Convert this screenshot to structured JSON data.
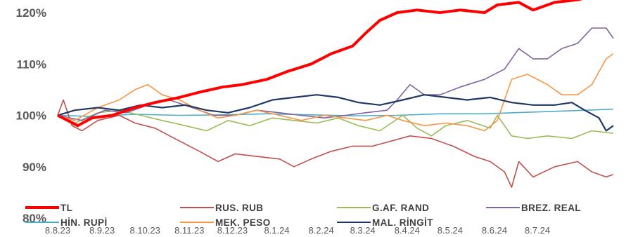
{
  "chart_data": {
    "type": "line",
    "title": "",
    "xlabel": "",
    "ylabel": "",
    "ylim": [
      80,
      125
    ],
    "yticks": [
      {
        "value": 80,
        "label": "80%"
      },
      {
        "value": 90,
        "label": "90%"
      },
      {
        "value": 100,
        "label": "100%"
      },
      {
        "value": 110,
        "label": "110%"
      },
      {
        "value": 120,
        "label": "120%"
      }
    ],
    "x_range": [
      "2023-08-08",
      "2024-08-30"
    ],
    "xticks": [
      {
        "date": "2023-08-08",
        "label": "8.8.23"
      },
      {
        "date": "2023-09-08",
        "label": "8.9.23"
      },
      {
        "date": "2023-10-08",
        "label": "8.10.23"
      },
      {
        "date": "2023-11-08",
        "label": "8.11.23"
      },
      {
        "date": "2023-12-08",
        "label": "8.12.23"
      },
      {
        "date": "2024-01-08",
        "label": "8.1.24"
      },
      {
        "date": "2024-02-08",
        "label": "8.2.24"
      },
      {
        "date": "2024-03-08",
        "label": "8.3.24"
      },
      {
        "date": "2024-04-08",
        "label": "8.4.24"
      },
      {
        "date": "2024-05-08",
        "label": "8.5.24"
      },
      {
        "date": "2024-06-08",
        "label": "8.6.24"
      },
      {
        "date": "2024-07-08",
        "label": "8.7.24"
      }
    ],
    "grid": false,
    "legend_position": "bottom",
    "series": [
      {
        "name": "TL",
        "color": "#ff0000",
        "width": 4,
        "points": [
          [
            "2023-08-08",
            100
          ],
          [
            "2023-08-22",
            98
          ],
          [
            "2023-09-01",
            99.5
          ],
          [
            "2023-09-15",
            100
          ],
          [
            "2023-10-01",
            101.5
          ],
          [
            "2023-10-15",
            102.5
          ],
          [
            "2023-11-01",
            103.5
          ],
          [
            "2023-11-15",
            104.5
          ],
          [
            "2023-12-01",
            105.5
          ],
          [
            "2023-12-15",
            106
          ],
          [
            "2024-01-01",
            107
          ],
          [
            "2024-01-15",
            108.5
          ],
          [
            "2024-02-01",
            110
          ],
          [
            "2024-02-15",
            112
          ],
          [
            "2024-03-01",
            113.5
          ],
          [
            "2024-03-10",
            116
          ],
          [
            "2024-03-20",
            118.5
          ],
          [
            "2024-04-01",
            120
          ],
          [
            "2024-04-15",
            120.5
          ],
          [
            "2024-05-01",
            120
          ],
          [
            "2024-05-15",
            120.5
          ],
          [
            "2024-06-01",
            120
          ],
          [
            "2024-06-10",
            121.5
          ],
          [
            "2024-06-25",
            122
          ],
          [
            "2024-07-05",
            120.5
          ],
          [
            "2024-07-20",
            122
          ],
          [
            "2024-08-05",
            122.5
          ],
          [
            "2024-08-20",
            123.5
          ],
          [
            "2024-08-30",
            125
          ]
        ]
      },
      {
        "name": "RUS. RUB",
        "color": "#c0504d",
        "width": 1.6,
        "points": [
          [
            "2023-08-08",
            100
          ],
          [
            "2023-08-12",
            103
          ],
          [
            "2023-08-18",
            98
          ],
          [
            "2023-08-25",
            97
          ],
          [
            "2023-09-05",
            99
          ],
          [
            "2023-09-20",
            100
          ],
          [
            "2023-10-01",
            98.5
          ],
          [
            "2023-10-15",
            97.5
          ],
          [
            "2023-11-01",
            95
          ],
          [
            "2023-11-15",
            93
          ],
          [
            "2023-11-28",
            91
          ],
          [
            "2023-12-10",
            92.5
          ],
          [
            "2023-12-25",
            92
          ],
          [
            "2024-01-10",
            91.5
          ],
          [
            "2024-01-20",
            90
          ],
          [
            "2024-02-01",
            91.5
          ],
          [
            "2024-02-15",
            93
          ],
          [
            "2024-03-01",
            94
          ],
          [
            "2024-03-15",
            94
          ],
          [
            "2024-03-28",
            95
          ],
          [
            "2024-04-10",
            96
          ],
          [
            "2024-04-25",
            95.5
          ],
          [
            "2024-05-10",
            94
          ],
          [
            "2024-05-25",
            92
          ],
          [
            "2024-06-05",
            91
          ],
          [
            "2024-06-15",
            89
          ],
          [
            "2024-06-20",
            86
          ],
          [
            "2024-06-25",
            91
          ],
          [
            "2024-07-05",
            88
          ],
          [
            "2024-07-20",
            90
          ],
          [
            "2024-08-05",
            91
          ],
          [
            "2024-08-15",
            89
          ],
          [
            "2024-08-25",
            88
          ],
          [
            "2024-08-30",
            88.5
          ]
        ]
      },
      {
        "name": "G.AF. RAND",
        "color": "#9bbb59",
        "width": 1.6,
        "points": [
          [
            "2023-08-08",
            100
          ],
          [
            "2023-08-20",
            98.5
          ],
          [
            "2023-09-05",
            100.5
          ],
          [
            "2023-09-20",
            101
          ],
          [
            "2023-10-05",
            100
          ],
          [
            "2023-10-20",
            99
          ],
          [
            "2023-11-05",
            98
          ],
          [
            "2023-11-20",
            97
          ],
          [
            "2023-12-05",
            99
          ],
          [
            "2023-12-20",
            98
          ],
          [
            "2024-01-05",
            99.5
          ],
          [
            "2024-01-20",
            99
          ],
          [
            "2024-02-05",
            98.5
          ],
          [
            "2024-02-20",
            99.5
          ],
          [
            "2024-03-05",
            98
          ],
          [
            "2024-03-20",
            97
          ],
          [
            "2024-04-05",
            100
          ],
          [
            "2024-04-15",
            97.5
          ],
          [
            "2024-04-25",
            96
          ],
          [
            "2024-05-05",
            98
          ],
          [
            "2024-05-20",
            99
          ],
          [
            "2024-06-05",
            97.5
          ],
          [
            "2024-06-10",
            100
          ],
          [
            "2024-06-20",
            96
          ],
          [
            "2024-07-01",
            95.5
          ],
          [
            "2024-07-15",
            96
          ],
          [
            "2024-08-01",
            95.5
          ],
          [
            "2024-08-15",
            97
          ],
          [
            "2024-08-30",
            96.5
          ]
        ]
      },
      {
        "name": "BREZ. REAL",
        "color": "#8064a2",
        "width": 1.6,
        "points": [
          [
            "2023-08-08",
            100
          ],
          [
            "2023-08-25",
            99
          ],
          [
            "2023-09-10",
            101
          ],
          [
            "2023-09-25",
            100.5
          ],
          [
            "2023-10-10",
            102
          ],
          [
            "2023-10-25",
            103
          ],
          [
            "2023-11-10",
            101.5
          ],
          [
            "2023-11-25",
            100
          ],
          [
            "2023-12-10",
            100
          ],
          [
            "2023-12-25",
            101
          ],
          [
            "2024-01-10",
            100.5
          ],
          [
            "2024-01-25",
            100
          ],
          [
            "2024-02-10",
            99.5
          ],
          [
            "2024-02-25",
            100
          ],
          [
            "2024-03-10",
            100.5
          ],
          [
            "2024-03-25",
            101
          ],
          [
            "2024-04-01",
            103
          ],
          [
            "2024-04-10",
            106
          ],
          [
            "2024-04-20",
            104
          ],
          [
            "2024-05-01",
            104
          ],
          [
            "2024-05-15",
            105.5
          ],
          [
            "2024-06-01",
            107
          ],
          [
            "2024-06-15",
            109
          ],
          [
            "2024-06-25",
            113
          ],
          [
            "2024-07-05",
            111
          ],
          [
            "2024-07-15",
            111
          ],
          [
            "2024-07-25",
            113
          ],
          [
            "2024-08-05",
            114
          ],
          [
            "2024-08-15",
            117
          ],
          [
            "2024-08-25",
            117
          ],
          [
            "2024-08-30",
            115
          ]
        ]
      },
      {
        "name": "HİN. RUPİ",
        "color": "#4bacc6",
        "width": 1.6,
        "points": [
          [
            "2023-08-08",
            100
          ],
          [
            "2023-09-01",
            99.8
          ],
          [
            "2023-10-01",
            100.2
          ],
          [
            "2023-11-01",
            100
          ],
          [
            "2023-12-01",
            100.1
          ],
          [
            "2024-01-01",
            100.3
          ],
          [
            "2024-02-01",
            100.1
          ],
          [
            "2024-03-01",
            99.9
          ],
          [
            "2024-04-01",
            100
          ],
          [
            "2024-05-01",
            100.3
          ],
          [
            "2024-06-01",
            100.3
          ],
          [
            "2024-07-01",
            100.6
          ],
          [
            "2024-08-01",
            100.9
          ],
          [
            "2024-08-30",
            101.2
          ]
        ]
      },
      {
        "name": "MEK. PESO",
        "color": "#f79646",
        "width": 1.6,
        "points": [
          [
            "2023-08-08",
            100
          ],
          [
            "2023-08-20",
            99
          ],
          [
            "2023-09-05",
            101.5
          ],
          [
            "2023-09-20",
            103
          ],
          [
            "2023-10-01",
            105
          ],
          [
            "2023-10-10",
            106
          ],
          [
            "2023-10-20",
            104
          ],
          [
            "2023-11-01",
            103
          ],
          [
            "2023-11-15",
            101
          ],
          [
            "2023-11-28",
            99.5
          ],
          [
            "2023-12-10",
            100
          ],
          [
            "2023-12-25",
            101
          ],
          [
            "2024-01-10",
            100
          ],
          [
            "2024-01-25",
            99
          ],
          [
            "2024-02-10",
            100
          ],
          [
            "2024-02-25",
            99.5
          ],
          [
            "2024-03-10",
            99
          ],
          [
            "2024-03-25",
            100
          ],
          [
            "2024-04-05",
            99
          ],
          [
            "2024-04-20",
            98
          ],
          [
            "2024-05-05",
            98.5
          ],
          [
            "2024-05-20",
            98
          ],
          [
            "2024-06-01",
            97
          ],
          [
            "2024-06-10",
            99
          ],
          [
            "2024-06-15",
            103
          ],
          [
            "2024-06-20",
            107
          ],
          [
            "2024-07-01",
            108
          ],
          [
            "2024-07-15",
            106
          ],
          [
            "2024-07-25",
            104
          ],
          [
            "2024-08-05",
            104
          ],
          [
            "2024-08-15",
            106
          ],
          [
            "2024-08-25",
            111
          ],
          [
            "2024-08-30",
            112
          ]
        ]
      },
      {
        "name": "MAL. RİNGİT",
        "color": "#1f3864",
        "width": 2.2,
        "points": [
          [
            "2023-08-08",
            100
          ],
          [
            "2023-08-20",
            101
          ],
          [
            "2023-09-05",
            101.5
          ],
          [
            "2023-09-20",
            101
          ],
          [
            "2023-10-05",
            102
          ],
          [
            "2023-10-20",
            101.5
          ],
          [
            "2023-11-05",
            102
          ],
          [
            "2023-11-20",
            101
          ],
          [
            "2023-12-05",
            100.5
          ],
          [
            "2023-12-20",
            101.5
          ],
          [
            "2024-01-05",
            103
          ],
          [
            "2024-01-20",
            103.5
          ],
          [
            "2024-02-05",
            104
          ],
          [
            "2024-02-20",
            103.5
          ],
          [
            "2024-03-05",
            102.5
          ],
          [
            "2024-03-20",
            102
          ],
          [
            "2024-04-05",
            103
          ],
          [
            "2024-04-20",
            104
          ],
          [
            "2024-05-05",
            103.5
          ],
          [
            "2024-05-20",
            103
          ],
          [
            "2024-06-05",
            103.5
          ],
          [
            "2024-06-20",
            102.5
          ],
          [
            "2024-07-05",
            102
          ],
          [
            "2024-07-20",
            102
          ],
          [
            "2024-08-01",
            102.5
          ],
          [
            "2024-08-10",
            101
          ],
          [
            "2024-08-20",
            99.5
          ],
          [
            "2024-08-25",
            97
          ],
          [
            "2024-08-30",
            98
          ]
        ]
      }
    ]
  }
}
